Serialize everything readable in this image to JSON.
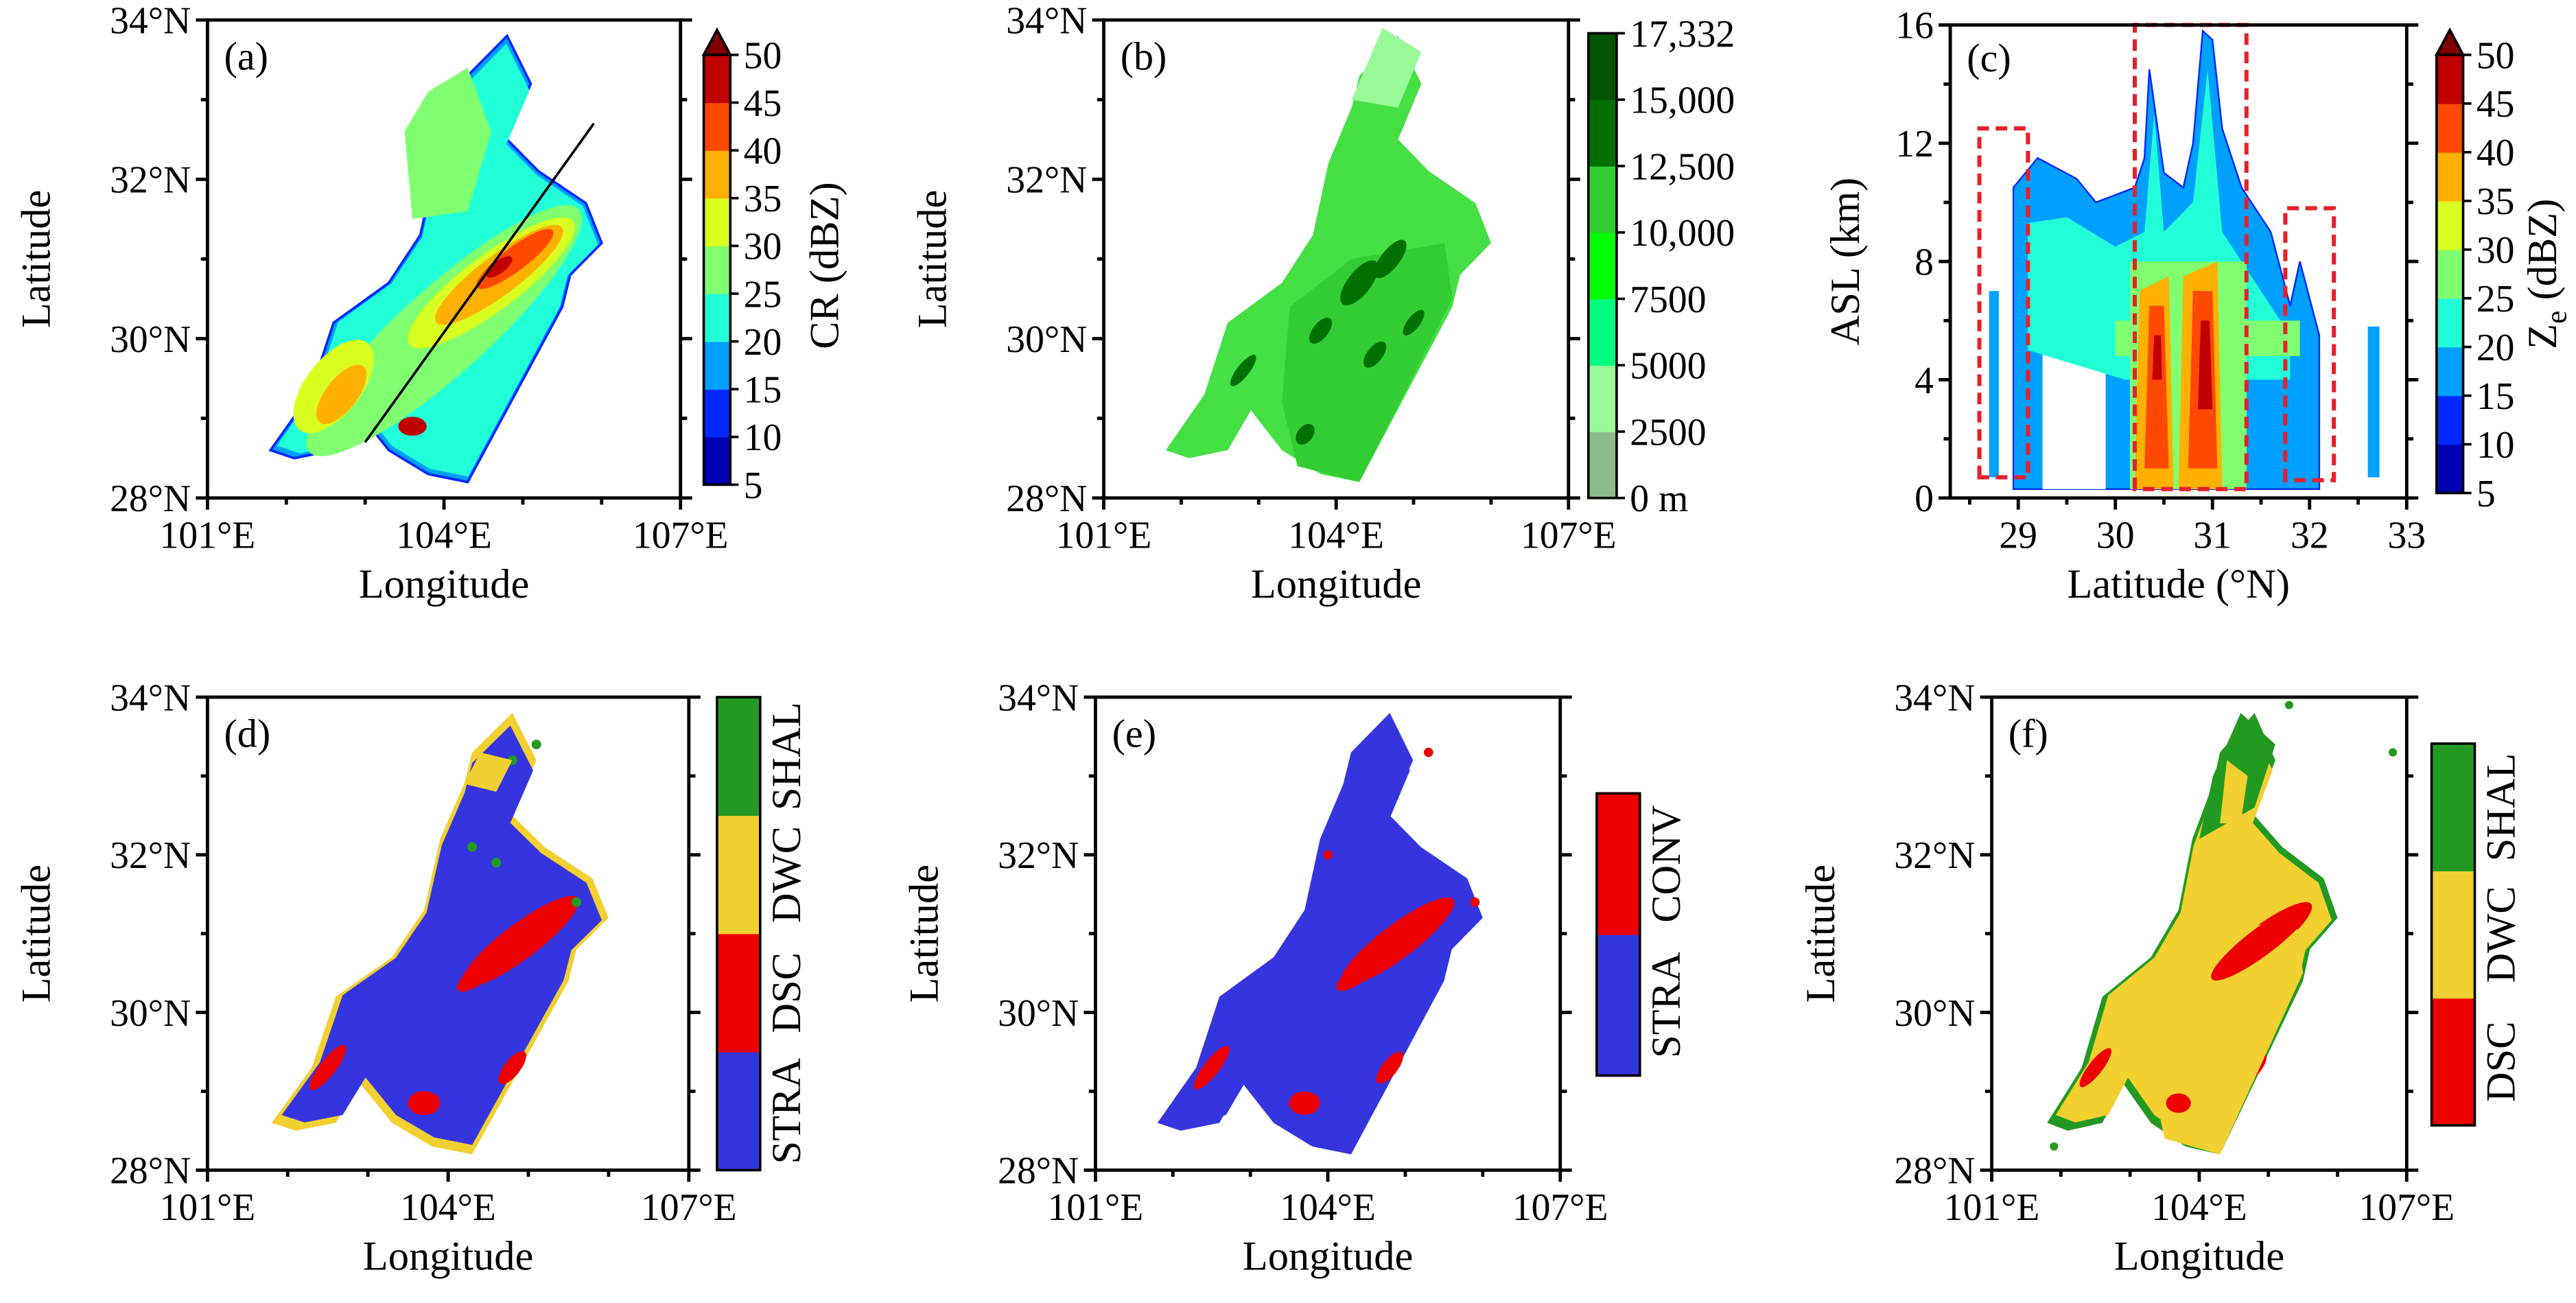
{
  "chart_data": [
    {
      "panel": "(a)",
      "type": "heatmap",
      "xlabel": "Longitude",
      "ylabel": "Latitude",
      "xlim": [
        101,
        107
      ],
      "ylim": [
        28,
        34
      ],
      "xticks": [
        "101°E",
        "104°E",
        "107°E"
      ],
      "xtick_values": [
        101,
        104,
        107
      ],
      "yticks": [
        "28°N",
        "30°N",
        "32°N",
        "34°N"
      ],
      "ytick_values": [
        28,
        30,
        32,
        34
      ],
      "cross_section_line": [
        [
          103.0,
          28.7
        ],
        [
          105.9,
          32.7
        ]
      ],
      "colorbar": {
        "label": "CR (dBZ)",
        "extend": "max",
        "ticks": [
          "5",
          "10",
          "15",
          "20",
          "25",
          "30",
          "35",
          "40",
          "45",
          "50"
        ],
        "colors": [
          "#0000b4",
          "#0028ff",
          "#00a0ff",
          "#20ffd8",
          "#80ff70",
          "#d8ff20",
          "#ffb000",
          "#ff4800",
          "#c00000"
        ],
        "extend_color": "#800000"
      }
    },
    {
      "panel": "(b)",
      "type": "heatmap",
      "xlabel": "Longitude",
      "ylabel": "Latitude",
      "xlim": [
        101,
        107
      ],
      "ylim": [
        28,
        34
      ],
      "xticks": [
        "101°E",
        "104°E",
        "107°E"
      ],
      "xtick_values": [
        101,
        104,
        107
      ],
      "yticks": [
        "28°N",
        "30°N",
        "32°N",
        "34°N"
      ],
      "ytick_values": [
        28,
        30,
        32,
        34
      ],
      "colorbar": {
        "label": "",
        "ticks": [
          "0 m",
          "2500",
          "5000",
          "7500",
          "10,000",
          "12,500",
          "15,000",
          "17,332"
        ],
        "colors": [
          "#8fbc8f",
          "#98fb98",
          "#00ff7f",
          "#00ff00",
          "#32cd32",
          "#007000",
          "#005500"
        ]
      }
    },
    {
      "panel": "(c)",
      "type": "heatmap",
      "xlabel": "Latitude (°N)",
      "ylabel": "ASL (km)",
      "xlim": [
        28.3,
        33
      ],
      "ylim": [
        0,
        16
      ],
      "xticks": [
        "29",
        "30",
        "31",
        "32",
        "33"
      ],
      "xtick_values": [
        29,
        30,
        31,
        32,
        33
      ],
      "yticks": [
        "0",
        "4",
        "8",
        "12",
        "16"
      ],
      "ytick_values": [
        0,
        4,
        8,
        12,
        16
      ],
      "highlight_boxes": [
        {
          "lat": [
            28.6,
            29.1
          ],
          "alt_km": [
            0.7,
            12.5
          ]
        },
        {
          "lat": [
            30.2,
            31.35
          ],
          "alt_km": [
            0.3,
            16
          ]
        },
        {
          "lat": [
            31.75,
            32.25
          ],
          "alt_km": [
            0.6,
            9.8
          ]
        }
      ],
      "box_color": "#e8202a",
      "colorbar": {
        "label_main": "Z",
        "label_sub": "e",
        "label_unit": " (dBZ)",
        "extend": "max",
        "ticks": [
          "5",
          "10",
          "15",
          "20",
          "25",
          "30",
          "35",
          "40",
          "45",
          "50"
        ],
        "colors": [
          "#0000b4",
          "#0028ff",
          "#00a0ff",
          "#20ffd8",
          "#80ff70",
          "#d8ff20",
          "#ffb000",
          "#ff4800",
          "#c00000"
        ],
        "extend_color": "#800000"
      }
    },
    {
      "panel": "(d)",
      "type": "heatmap",
      "xlabel": "Longitude",
      "ylabel": "Latitude",
      "xlim": [
        101,
        107
      ],
      "ylim": [
        28,
        34
      ],
      "xticks": [
        "101°E",
        "104°E",
        "107°E"
      ],
      "xtick_values": [
        101,
        104,
        107
      ],
      "yticks": [
        "28°N",
        "30°N",
        "32°N",
        "34°N"
      ],
      "ytick_values": [
        28,
        30,
        32,
        34
      ],
      "legend": [
        {
          "name": "STRA",
          "color": "#3535e0"
        },
        {
          "name": "DSC",
          "color": "#ee0000"
        },
        {
          "name": "DWC",
          "color": "#f2d030"
        },
        {
          "name": "SHAL",
          "color": "#229a22"
        }
      ]
    },
    {
      "panel": "(e)",
      "type": "heatmap",
      "xlabel": "Longitude",
      "ylabel": "Latitude",
      "xlim": [
        101,
        107
      ],
      "ylim": [
        28,
        34
      ],
      "xticks": [
        "101°E",
        "104°E",
        "107°E"
      ],
      "xtick_values": [
        101,
        104,
        107
      ],
      "yticks": [
        "28°N",
        "30°N",
        "32°N",
        "34°N"
      ],
      "ytick_values": [
        28,
        30,
        32,
        34
      ],
      "legend": [
        {
          "name": "STRA",
          "color": "#3535e0"
        },
        {
          "name": "CONV",
          "color": "#ee0000"
        }
      ]
    },
    {
      "panel": "(f)",
      "type": "heatmap",
      "xlabel": "Longitude",
      "ylabel": "Latitude",
      "xlim": [
        101,
        107
      ],
      "ylim": [
        28,
        34
      ],
      "xticks": [
        "101°E",
        "104°E",
        "107°E"
      ],
      "xtick_values": [
        101,
        104,
        107
      ],
      "yticks": [
        "28°N",
        "30°N",
        "32°N",
        "34°N"
      ],
      "ytick_values": [
        28,
        30,
        32,
        34
      ],
      "legend": [
        {
          "name": "DSC",
          "color": "#ee0000"
        },
        {
          "name": "DWC",
          "color": "#f2d030"
        },
        {
          "name": "SHAL",
          "color": "#229a22"
        }
      ]
    }
  ]
}
